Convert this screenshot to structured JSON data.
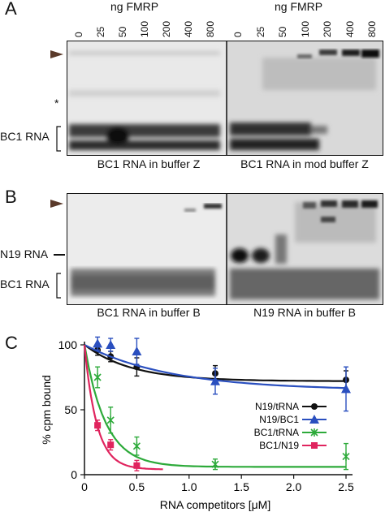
{
  "panels": {
    "A": {
      "letter": "A",
      "header": "ng FMRP",
      "lanes": [
        "0",
        "25",
        "50",
        "100",
        "200",
        "400",
        "800"
      ],
      "asterisk": "*",
      "side_label": "BC1 RNA",
      "captions": [
        "BC1 RNA in buffer Z",
        "BC1 RNA in mod buffer Z"
      ]
    },
    "B": {
      "letter": "B",
      "side_labels": [
        "N19 RNA",
        "BC1 RNA"
      ],
      "captions": [
        "BC1 RNA in buffer B",
        "N19 RNA in buffer B"
      ]
    },
    "C": {
      "letter": "C"
    }
  },
  "chart_data": {
    "type": "line",
    "xlabel": "RNA competitors [μM]",
    "ylabel": "% cpm bound",
    "xlim": [
      0,
      2.5
    ],
    "ylim": [
      0,
      100
    ],
    "xticks": [
      "0",
      "0.5",
      "1.0",
      "1.5",
      "2.0",
      "2.5"
    ],
    "yticks": [
      "0",
      "50",
      "100"
    ],
    "legend_position": "right",
    "series": [
      {
        "name": "N19/tRNA",
        "color": "#111111",
        "marker": "circle",
        "x": [
          0,
          0.125,
          0.25,
          0.5,
          1.25,
          2.5
        ],
        "y": [
          100,
          96,
          91,
          83,
          78,
          73
        ],
        "err": [
          0,
          4,
          4,
          7,
          6,
          7
        ]
      },
      {
        "name": "N19/BC1",
        "color": "#2a4fbf",
        "marker": "triangle",
        "x": [
          0,
          0.125,
          0.25,
          0.5,
          1.25,
          2.5
        ],
        "y": [
          100,
          101,
          100,
          95,
          72,
          66
        ],
        "err": [
          0,
          5,
          5,
          10,
          10,
          17
        ]
      },
      {
        "name": "BC1/tRNA",
        "color": "#2daa3a",
        "marker": "x",
        "x": [
          0,
          0.125,
          0.25,
          0.5,
          1.25,
          2.5
        ],
        "y": [
          100,
          75,
          42,
          22,
          8,
          14
        ],
        "err": [
          0,
          8,
          10,
          7,
          4,
          10
        ]
      },
      {
        "name": "BC1/N19",
        "color": "#e0245e",
        "marker": "square",
        "x": [
          0,
          0.125,
          0.25,
          0.5
        ],
        "y": [
          100,
          38,
          23,
          7
        ],
        "err": [
          0,
          4,
          4,
          4
        ]
      }
    ]
  }
}
